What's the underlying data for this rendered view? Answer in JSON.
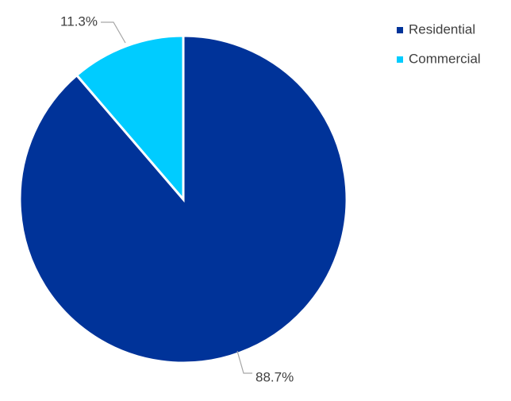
{
  "chart_data": {
    "type": "pie",
    "title": "",
    "start_angle_deg": 0,
    "direction": "clockwise",
    "legend_position": "top-right",
    "slices": [
      {
        "label": "Residential",
        "value": 88.7,
        "display": "88.7%",
        "color": "#003399"
      },
      {
        "label": "Commercial",
        "value": 11.3,
        "display": "11.3%",
        "color": "#00CCFF"
      }
    ]
  }
}
